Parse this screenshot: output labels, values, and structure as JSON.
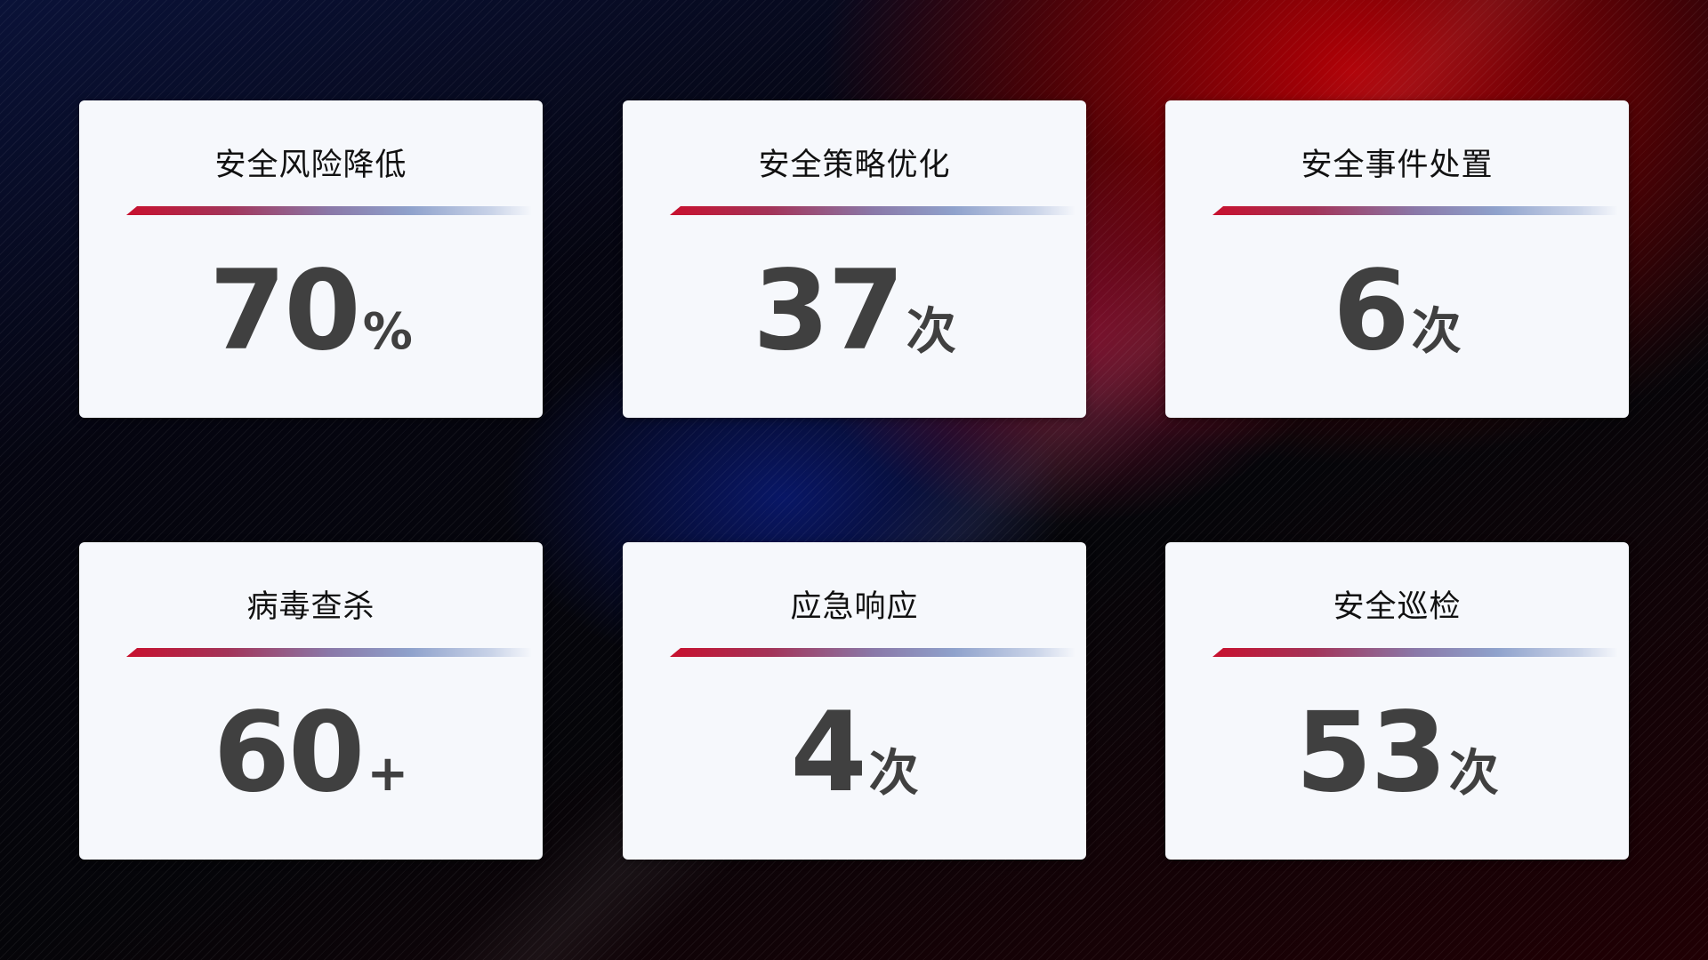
{
  "cards": [
    {
      "title": "安全风险降低",
      "value": "70",
      "unit": "%"
    },
    {
      "title": "安全策略优化",
      "value": "37",
      "unit": "次"
    },
    {
      "title": "安全事件处置",
      "value": "6",
      "unit": "次"
    },
    {
      "title": "病毒查杀",
      "value": "60",
      "unit": "+"
    },
    {
      "title": "应急响应",
      "value": "4",
      "unit": "次"
    },
    {
      "title": "安全巡检",
      "value": "53",
      "unit": "次"
    }
  ],
  "colors": {
    "accent_red": "#c8102e",
    "accent_blue": "#8fa2cc",
    "card_bg": "#f6f8fc",
    "value_text": "#404040"
  }
}
